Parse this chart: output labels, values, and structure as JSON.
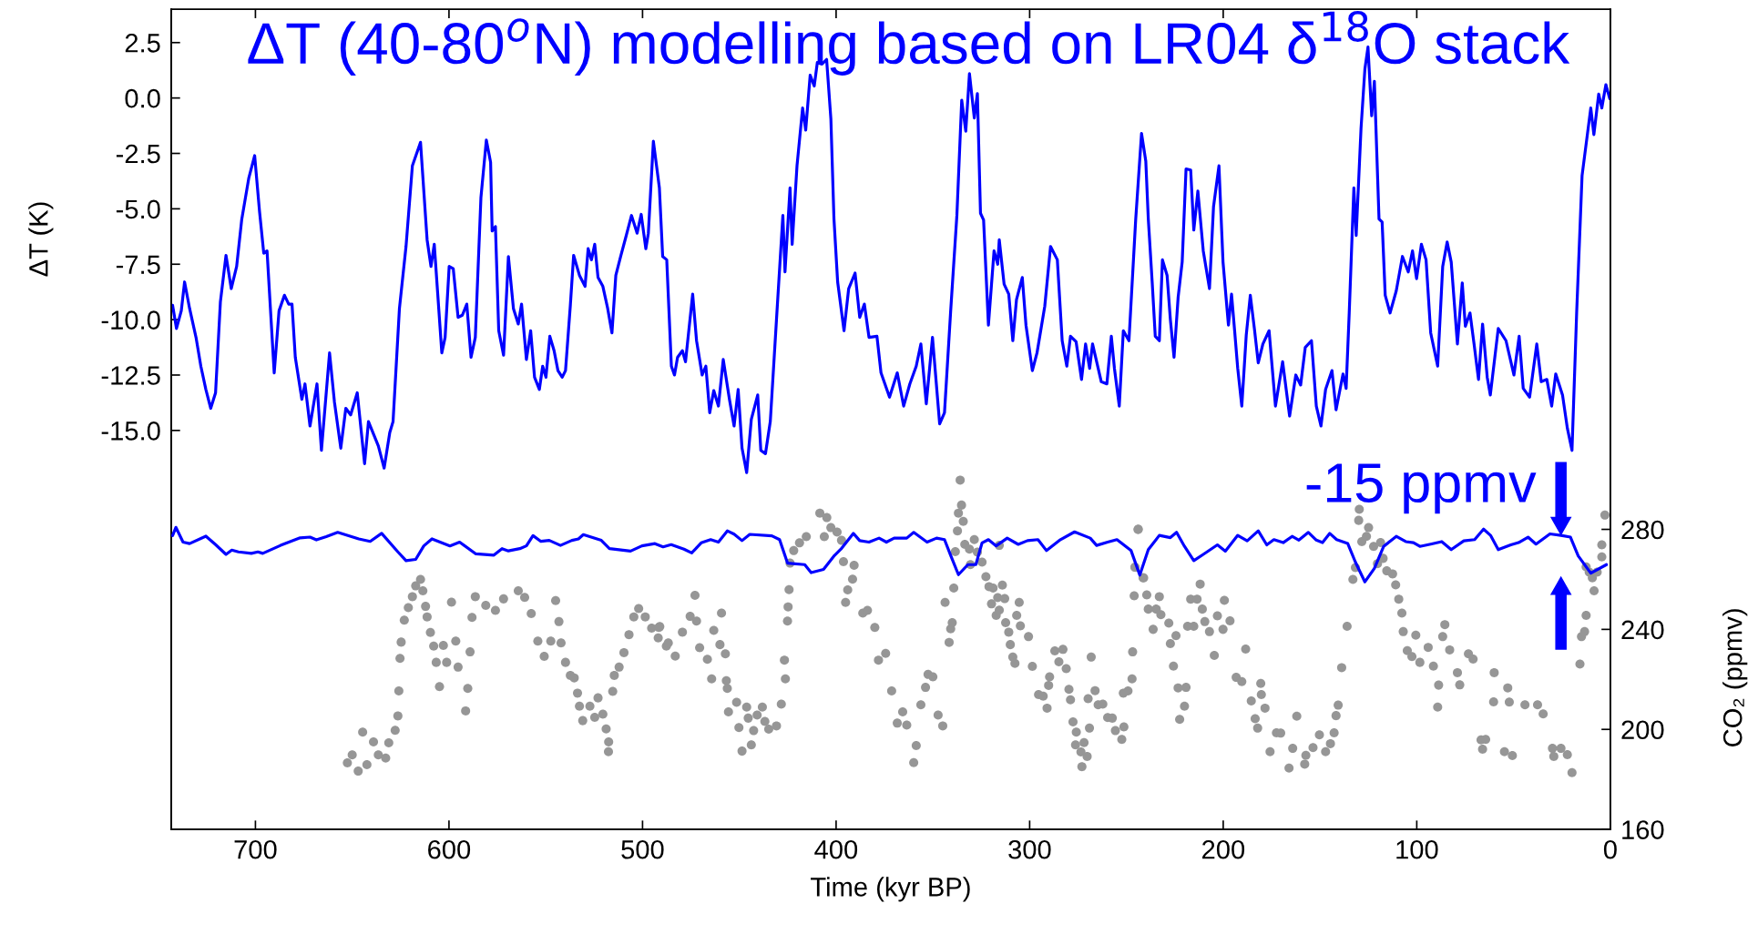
{
  "chart_data": {
    "type": "line",
    "title": "ΔT (40-80$^{o}$N) modelling based on LR04 δ$^{18}$O stack",
    "xlabel": "Time (kyr BP)",
    "ylabel": "ΔT (K)",
    "y2label": "CO₂ (ppmv)",
    "xlim": [
      743.5,
      0
    ],
    "xticks": [
      700,
      600,
      500,
      400,
      300,
      200,
      100,
      0
    ],
    "ylim": [
      -33,
      4
    ],
    "yticks": [
      {
        "value": 2.5,
        "label": "2.5"
      },
      {
        "value": 0,
        "label": "0.0"
      },
      {
        "value": -2.5,
        "label": "-2.5"
      },
      {
        "value": -5,
        "label": "-5.0"
      },
      {
        "value": -7.5,
        "label": "-7.5"
      },
      {
        "value": -10,
        "label": "-10.0"
      },
      {
        "value": -12.5,
        "label": "-12.5"
      },
      {
        "value": -15,
        "label": "-15.0"
      }
    ],
    "y2lim": [
      160,
      488
    ],
    "y2ticks": [
      160,
      200,
      240,
      280
    ],
    "annotations": [
      "-15 ppmv"
    ],
    "series": [
      {
        "color": "#0000ff",
        "x": [
          742.8,
          740.8,
          738.3,
          736.6,
          734.0,
          730.7,
          728.2,
          725.6,
          723.1,
          720.6,
          718.1,
          715.2,
          712.5,
          709.7,
          707.1,
          703.4,
          700.4,
          697.9,
          695.7,
          694.0,
          690.3,
          687.8,
          685.0,
          682.8,
          681.1,
          679.4,
          676.0,
          674.4,
          671.8,
          668.2,
          665.9,
          661.7,
          659.2,
          655.9,
          653.3,
          650.8,
          647.4,
          643.6,
          641.6,
          636.5,
          633.5,
          630.6,
          628.9,
          625.6,
          622.2,
          618.9,
          614.7,
          611.3,
          609.3,
          607.6,
          603.7,
          602.0,
          599.9,
          597.8,
          595.3,
          593.1,
          590.8,
          588.6,
          586.4,
          583.5,
          580.7,
          578.5,
          577.7,
          576.0,
          574.3,
          571.8,
          569.3,
          566.7,
          564.2,
          562.5,
          560.0,
          557.8,
          555.8,
          553.3,
          551.6,
          549.9,
          547.9,
          545.7,
          543.7,
          541.5,
          539.8,
          537.3,
          535.6,
          532.6,
          529.7,
          528.1,
          526.4,
          524.7,
          523.0,
          520.5,
          518.0,
          515.8,
          513.8,
          511.3,
          508.7,
          505.7,
          502.8,
          500.7,
          498.3,
          497.0,
          494.4,
          491.3,
          489.6,
          487.5,
          485.1,
          483.5,
          481.9,
          479.4,
          477.8,
          474.1,
          472.1,
          469.2,
          467.3,
          465.3,
          463.2,
          460.8,
          458.3,
          455.1,
          452.7,
          450.6,
          448.6,
          446.2,
          443.8,
          440.5,
          438.9,
          436.5,
          434.0,
          430.8,
          427.5,
          426.4,
          423.8,
          422.7,
          420.2,
          417.3,
          415.7,
          413.4,
          411.3,
          409.7,
          407.3,
          404.9,
          402.7,
          401.1,
          399.2,
          395.9,
          393.5,
          390.2,
          387.8,
          385.4,
          383.0,
          378.9,
          376.8,
          372.4,
          368.4,
          365.1,
          361.9,
          358.6,
          356.2,
          353.4,
          350.2,
          346.5,
          344.0,
          340.8,
          337.6,
          335.1,
          333.0,
          331.1,
          328.6,
          327.0,
          325.4,
          323.8,
          321.3,
          318.4,
          316.5,
          315.7,
          313.2,
          310.8,
          308.7,
          306.8,
          303.8,
          301.9,
          298.6,
          296.2,
          292.2,
          289.2,
          285.7,
          283.2,
          280.8,
          278.9,
          276.0,
          273.2,
          271.1,
          269.0,
          267.5,
          263.0,
          260.1,
          257.8,
          256.2,
          253.7,
          251.6,
          248.7,
          245.2,
          242.2,
          240.0,
          238.7,
          236.7,
          235.1,
          233.0,
          231.4,
          229.0,
          227.3,
          225.4,
          223.3,
          221.2,
          219.2,
          216.8,
          215.2,
          213.1,
          210.3,
          207.1,
          205.0,
          202.2,
          200.1,
          197.3,
          195.7,
          194.1,
          192.5,
          190.4,
          188.1,
          186.0,
          183.9,
          181.9,
          179.5,
          176.3,
          173.0,
          169.3,
          165.7,
          162.5,
          160.0,
          157.6,
          154.4,
          151.9,
          149.5,
          147.1,
          143.8,
          141.7,
          138.1,
          136.5,
          134.9,
          132.5,
          131.3,
          128.8,
          126.8,
          125.2,
          123.3,
          121.9,
          119.5,
          117.9,
          116.3,
          113.8,
          110.6,
          107.4,
          104.4,
          102.2,
          100.1,
          97.6,
          95.2,
          92.8,
          89.2,
          86.6,
          84.3,
          82.2,
          79.0,
          76.5,
          74.9,
          72.5,
          70.4,
          68.1,
          66.0,
          63.6,
          62.0,
          57.9,
          53.9,
          49.8,
          47.1,
          45.0,
          41.7,
          38.0,
          35.7,
          32.8,
          30.3,
          28.2,
          24.7,
          22.2,
          19.8,
          17.4,
          14.6,
          10.1,
          8.5,
          6.0,
          4.4,
          2.3,
          0.3
        ],
        "values": [
          -9.35,
          -10.4,
          -9.6,
          -8.3,
          -9.5,
          -10.8,
          -12.1,
          -13.15,
          -14.0,
          -13.3,
          -9.2,
          -7.1,
          -8.6,
          -7.6,
          -5.5,
          -3.6,
          -2.6,
          -5.1,
          -7.0,
          -6.9,
          -12.4,
          -9.6,
          -8.9,
          -9.3,
          -9.3,
          -11.7,
          -13.6,
          -12.9,
          -14.8,
          -12.9,
          -15.9,
          -11.5,
          -13.7,
          -15.8,
          -14.0,
          -14.3,
          -13.3,
          -16.5,
          -14.6,
          -15.7,
          -16.7,
          -15.1,
          -14.6,
          -9.5,
          -6.7,
          -3.05,
          -2.0,
          -6.4,
          -7.6,
          -6.6,
          -11.5,
          -10.8,
          -7.6,
          -7.7,
          -9.9,
          -9.8,
          -9.3,
          -11.7,
          -10.8,
          -4.5,
          -1.9,
          -2.9,
          -6.0,
          -5.8,
          -10.5,
          -11.6,
          -7.15,
          -9.5,
          -10.2,
          -9.3,
          -11.8,
          -10.5,
          -12.6,
          -13.15,
          -12.1,
          -12.6,
          -10.75,
          -11.4,
          -12.3,
          -12.6,
          -12.3,
          -9.35,
          -7.1,
          -8.0,
          -8.5,
          -6.8,
          -7.3,
          -6.6,
          -8.1,
          -8.5,
          -9.5,
          -10.6,
          -8.0,
          -7.15,
          -6.3,
          -5.3,
          -6.1,
          -5.25,
          -6.8,
          -6.1,
          -1.95,
          -4.05,
          -7.15,
          -7.3,
          -12.1,
          -12.5,
          -11.7,
          -11.4,
          -11.9,
          -8.85,
          -10.95,
          -12.5,
          -12.1,
          -14.2,
          -13.2,
          -13.9,
          -11.8,
          -13.6,
          -14.8,
          -13.15,
          -15.8,
          -16.9,
          -14.5,
          -13.4,
          -15.9,
          -16.05,
          -14.6,
          -10.0,
          -5.3,
          -7.85,
          -4.05,
          -6.6,
          -3.06,
          -0.45,
          -1.45,
          1.03,
          0.54,
          1.6,
          1.53,
          1.74,
          -0.94,
          -5.46,
          -8.3,
          -10.5,
          -8.6,
          -7.9,
          -9.9,
          -9.3,
          -10.8,
          -10.75,
          -12.4,
          -13.5,
          -12.4,
          -13.9,
          -12.9,
          -12.1,
          -11.1,
          -13.8,
          -10.8,
          -14.7,
          -14.2,
          -9.6,
          -5.3,
          -0.1,
          -1.5,
          1.1,
          -0.9,
          0.2,
          -5.2,
          -5.5,
          -10.25,
          -6.9,
          -7.5,
          -6.4,
          -8.4,
          -8.85,
          -10.95,
          -9.1,
          -8.1,
          -10.25,
          -12.3,
          -11.5,
          -9.4,
          -6.7,
          -7.3,
          -10.95,
          -12.1,
          -10.75,
          -11.0,
          -12.7,
          -11.1,
          -12.2,
          -11.1,
          -12.8,
          -12.9,
          -10.75,
          -12.2,
          -13.9,
          -10.5,
          -10.95,
          -5.46,
          -1.6,
          -2.85,
          -5.46,
          -8.3,
          -10.75,
          -10.95,
          -7.3,
          -8.0,
          -10.0,
          -11.7,
          -9.0,
          -7.4,
          -3.2,
          -3.25,
          -5.96,
          -4.2,
          -6.9,
          -8.6,
          -4.9,
          -3.06,
          -7.4,
          -10.25,
          -8.85,
          -10.5,
          -12.2,
          -13.9,
          -10.7,
          -8.9,
          -10.4,
          -11.95,
          -11.1,
          -10.5,
          -13.9,
          -11.9,
          -14.35,
          -12.5,
          -12.95,
          -11.25,
          -10.95,
          -13.9,
          -14.8,
          -13.15,
          -12.3,
          -14.07,
          -12.45,
          -13.1,
          -9.7,
          -4.05,
          -6.2,
          -1.37,
          1.31,
          2.3,
          -0.8,
          0.75,
          -5.46,
          -5.6,
          -8.9,
          -9.7,
          -8.7,
          -7.15,
          -7.85,
          -6.9,
          -8.15,
          -6.6,
          -7.3,
          -10.6,
          -12.1,
          -7.6,
          -6.5,
          -7.4,
          -11.1,
          -8.35,
          -10.3,
          -9.7,
          -11.1,
          -12.7,
          -10.2,
          -12.6,
          -13.4,
          -10.4,
          -10.95,
          -12.5,
          -10.75,
          -13.1,
          -13.5,
          -11.1,
          -12.8,
          -12.7,
          -13.9,
          -12.45,
          -13.4,
          -14.9,
          -15.9,
          -9.7,
          -3.5,
          -0.45,
          -1.65,
          0.18,
          -0.45,
          0.6,
          -0.03
        ]
      },
      {
        "axis": "y2",
        "color": "#0000ff",
        "x": [
          742.8,
          741.1,
          737.4,
          734.0,
          725.6,
          720.6,
          715.2,
          712.2,
          708.8,
          702.1,
          698.7,
          696.2,
          687.0,
          676.9,
          671.8,
          668.5,
          663.4,
          657.5,
          646.6,
          640.7,
          634.8,
          626.4,
          622.2,
          617.2,
          613.0,
          608.8,
          599.5,
          594.5,
          586.1,
          576.8,
          572.6,
          569.3,
          563.4,
          560.0,
          556.6,
          552.5,
          548.2,
          542.4,
          536.5,
          533.1,
          530.6,
          521.3,
          517.1,
          506.2,
          500.3,
          493.6,
          489.4,
          485.2,
          478.6,
          474.6,
          469.7,
          464.8,
          460.8,
          456.2,
          452.7,
          448.6,
          444.6,
          433.2,
          429.2,
          425.1,
          416.2,
          412.9,
          406.5,
          400.8,
          397.5,
          391.1,
          387.8,
          383.0,
          377.8,
          374.0,
          370.0,
          363.5,
          359.9,
          353.0,
          348.1,
          344.0,
          340.8,
          336.8,
          331.9,
          327.8,
          324.6,
          321.3,
          317.3,
          311.6,
          305.9,
          301.1,
          295.7,
          291.3,
          284.1,
          276.8,
          268.7,
          265.4,
          259.7,
          254.9,
          247.6,
          243.1,
          238.7,
          233.0,
          227.3,
          224.1,
          220.0,
          215.2,
          210.3,
          203.0,
          198.9,
          192.5,
          187.6,
          181.9,
          177.5,
          173.8,
          169.0,
          164.4,
          160.9,
          156.0,
          151.9,
          148.7,
          145.0,
          141.4,
          135.7,
          131.7,
          126.8,
          121.9,
          117.1,
          110.6,
          105.7,
          101.7,
          98.4,
          92.8,
          87.1,
          82.2,
          75.7,
          70.1,
          65.5,
          61.9,
          57.9,
          51.4,
          47.4,
          42.5,
          38.4,
          31.2,
          25.5,
          20.6,
          16.6,
          10.1,
          2.0
        ],
        "values": [
          277.5,
          280.8,
          274.9,
          274.3,
          277.3,
          273.9,
          270.0,
          271.7,
          271.0,
          270.4,
          271.0,
          270.4,
          273.6,
          276.6,
          276.9,
          275.8,
          277.1,
          278.8,
          276.2,
          275.2,
          278.4,
          271.0,
          267.5,
          268.0,
          273.4,
          276.2,
          273.4,
          274.9,
          270.2,
          269.7,
          272.3,
          271.4,
          272.3,
          273.4,
          277.5,
          275.2,
          275.6,
          273.6,
          275.6,
          276.2,
          277.9,
          275.6,
          272.3,
          271.3,
          273.4,
          274.3,
          273.0,
          273.9,
          272.1,
          270.6,
          274.6,
          275.9,
          274.9,
          279.4,
          278.1,
          275.5,
          278.0,
          277.4,
          275.9,
          266.5,
          265.9,
          262.7,
          264.0,
          269.6,
          272.1,
          278.4,
          275.5,
          274.9,
          276.5,
          274.9,
          276.5,
          276.5,
          278.8,
          274.9,
          276.5,
          275.9,
          269.6,
          261.9,
          265.9,
          265.9,
          274.6,
          275.9,
          273.4,
          276.5,
          274.0,
          275.5,
          275.9,
          271.5,
          275.9,
          279.0,
          276.5,
          273.6,
          274.9,
          275.9,
          271.5,
          261.7,
          271.9,
          277.6,
          276.7,
          278.8,
          273.2,
          267.5,
          270.0,
          273.8,
          271.3,
          277.6,
          275.4,
          279.4,
          273.8,
          275.9,
          274.7,
          277.2,
          275.7,
          278.8,
          275.7,
          274.7,
          278.4,
          275.9,
          274.4,
          266.9,
          259.0,
          264.4,
          273.2,
          277.2,
          275.1,
          274.7,
          273.2,
          274.1,
          275.1,
          271.9,
          275.4,
          275.9,
          280.1,
          277.6,
          271.9,
          273.8,
          274.7,
          276.9,
          274.1,
          278.2,
          277.6,
          276.9,
          269.4,
          262.5,
          265.9
        ]
      },
      {
        "type": "scatter",
        "axis": "y2",
        "color": "#969696",
        "marker": "circle",
        "x": [
          652.5,
          650.0,
          646.9,
          644.6,
          642.4,
          639.0,
          636.5,
          632.7,
          631.1,
          627.8,
          626.4,
          625.9,
          625.3,
          624.7,
          623.1,
          621.0,
          618.9,
          617.2,
          614.7,
          613.5,
          612.1,
          611.3,
          609.6,
          607.9,
          606.6,
          604.9,
          602.9,
          601.2,
          598.7,
          596.5,
          595.3,
          591.4,
          590.3,
          589.1,
          588.1,
          586.4,
          581.0,
          576.0,
          571.8,
          564.2,
          560.9,
          557.5,
          554.1,
          550.8,
          547.4,
          544.9,
          543.2,
          542.1,
          539.8,
          537.3,
          535.3,
          533.6,
          532.6,
          530.9,
          527.2,
          524.7,
          523.0,
          520.5,
          518.8,
          517.5,
          517.6,
          515.4,
          514.6,
          512.1,
          509.6,
          507.0,
          504.5,
          502.0,
          498.6,
          495.3,
          491.9,
          487.7,
          491.1,
          491.6,
          486.7,
          483.1,
          479.4,
          475.4,
          472.9,
          472.1,
          470.5,
          466.5,
          464.3,
          463.2,
          460.0,
          459.2,
          457.2,
          456.7,
          456.2,
          455.6,
          451.4,
          450.2,
          448.6,
          446.2,
          445.4,
          443.8,
          442.6,
          440.8,
          438.1,
          436.8,
          434.8,
          430.8,
          428.3,
          426.7,
          426.2,
          425.1,
          424.8,
          424.3,
          423.8,
          421.9,
          418.9,
          415.4,
          408.4,
          404.8,
          406.1,
          402.7,
          399.5,
          397.2,
          396.2,
          390.7,
          391.5,
          394.0,
          395.1,
          386.2,
          383.8,
          380.0,
          378.1,
          374.4,
          371.3,
          368.4,
          365.6,
          363.5,
          359.9,
          358.6,
          356.2,
          353.8,
          352.5,
          350.0,
          347.3,
          344.9,
          341.6,
          340.8,
          340.0,
          343.7,
          339.2,
          338.4,
          337.3,
          336.8,
          335.2,
          335.9,
          334.3,
          333.5,
          331.1,
          328.6,
          330.6,
          327.0,
          324.6,
          322.6,
          321.0,
          318.9,
          316.5,
          314.1,
          312.9,
          319.7,
          317.3,
          315.7,
          312.4,
          310.8,
          310.0,
          308.7,
          307.6,
          315.7,
          305.4,
          306.7,
          304.8,
          300.6,
          298.6,
          295.4,
          293.0,
          291.0,
          290.2,
          289.7,
          287.0,
          284.9,
          282.8,
          281.1,
          279.7,
          278.9,
          277.6,
          275.9,
          276.3,
          273.5,
          273.0,
          271.9,
          270.3,
          269.1,
          269.8,
          266.2,
          268.2,
          264.6,
          262.2,
          259.7,
          257.3,
          255.7,
          252.4,
          251.3,
          251.6,
          249.2,
          247.1,
          246.8,
          244.0,
          245.6,
          241.4,
          243.9,
          245.5,
          241.1,
          246.0,
          239.5,
          238.7,
          236.2,
          234.6,
          233.0,
          232.2,
          228.1,
          227.3,
          225.7,
          224.4,
          223.3,
          222.5,
          220.0,
          219.2,
          218.4,
          216.8,
          215.2,
          213.5,
          211.9,
          210.8,
          209.5,
          207.1,
          204.6,
          203.0,
          200.1,
          199.4,
          196.5,
          193.3,
          190.4,
          188.4,
          185.5,
          183.5,
          182.2,
          180.6,
          180.3,
          178.4,
          175.8,
          172.5,
          170.3,
          166.0,
          164.1,
          162.0,
          157.9,
          157.3,
          153.6,
          150.3,
          147.1,
          144.6,
          142.7,
          141.7,
          140.6,
          138.8,
          136.0,
          133.0,
          131.7,
          130.0,
          129.7,
          128.4,
          126.0,
          124.9,
          122.3,
          120.3,
          118.7,
          117.4,
          115.5,
          112.5,
          110.9,
          109.3,
          107.7,
          107.0,
          104.9,
          102.5,
          100.5,
          98.4,
          94.1,
          91.4,
          88.7,
          89.2,
          86.6,
          85.5,
          83.0,
          79.0,
          77.8,
          73.3,
          70.9,
          66.8,
          66.0,
          64.4,
          60.0,
          60.3,
          54.7,
          53.0,
          52.2,
          50.6,
          44.1,
          37.6,
          34.7,
          29.9,
          29.2,
          25.5,
          22.2,
          19.8,
          15.7,
          14.9,
          13.3,
          12.5,
          12.5,
          10.9,
          8.4,
          9.3,
          6.8,
          4.4,
          4.4,
          2.8
        ],
        "values": [
          186.6,
          189.8,
          183.3,
          198.9,
          185.9,
          195.0,
          189.8,
          188.5,
          194.6,
          199.6,
          205.4,
          215.4,
          228.4,
          234.9,
          243.7,
          248.7,
          253.1,
          257.4,
          260.0,
          255.4,
          249.2,
          245.0,
          238.8,
          233.3,
          226.8,
          217.1,
          233.6,
          226.8,
          250.9,
          235.3,
          224.9,
          207.4,
          216.4,
          231.0,
          244.8,
          253.1,
          249.6,
          247.6,
          252.2,
          255.4,
          252.8,
          246.3,
          235.3,
          229.2,
          235.3,
          251.5,
          243.1,
          234.6,
          226.8,
          221.6,
          220.6,
          214.5,
          209.3,
          203.5,
          209.3,
          204.8,
          212.6,
          206.1,
          200.2,
          195.0,
          191.1,
          215.2,
          221.6,
          224.9,
          230.7,
          237.9,
          245.0,
          248.3,
          245.0,
          240.5,
          236.6,
          233.3,
          241.1,
          240.8,
          234.6,
          229.3,
          238.9,
          245.2,
          253.6,
          243.3,
          232.7,
          228.0,
          220.2,
          239.6,
          233.9,
          246.5,
          230.2,
          219.5,
          216.4,
          207.0,
          210.8,
          200.7,
          191.3,
          208.9,
          204.5,
          193.8,
          199.5,
          205.7,
          208.9,
          203.2,
          200.1,
          201.4,
          210.1,
          227.7,
          220.2,
          243.3,
          249.0,
          255.9,
          266.5,
          271.5,
          274.6,
          277.1,
          286.5,
          284.7,
          277.1,
          280.7,
          278.9,
          275.6,
          267.1,
          265.6,
          260.1,
          255.8,
          250.8,
          246.5,
          247.6,
          240.8,
          227.7,
          230.4,
          215.4,
          202.5,
          207.0,
          201.7,
          186.7,
          193.5,
          209.8,
          216.8,
          222.0,
          221.0,
          205.7,
          201.4,
          234.8,
          240.2,
          242.7,
          250.8,
          256.5,
          271.1,
          279.4,
          286.5,
          289.7,
          299.7,
          283.2,
          274.0,
          272.1,
          275.9,
          265.9,
          270.9,
          266.9,
          261.1,
          257.1,
          256.5,
          252.7,
          257.7,
          252.3,
          250.2,
          245.6,
          247.7,
          242.7,
          238.9,
          233.9,
          228.9,
          226.4,
          273.6,
          250.8,
          245.6,
          241.4,
          237.1,
          225.2,
          213.9,
          213.3,
          208.5,
          217.6,
          221.0,
          231.4,
          227.0,
          232.0,
          224.3,
          216.0,
          211.8,
          203.0,
          198.9,
          193.8,
          191.0,
          185.1,
          194.7,
          189.2,
          200.5,
          212.3,
          215.5,
          228.9,
          209.8,
          210.1,
          204.7,
          204.5,
          199.5,
          196.0,
          201.0,
          214.5,
          215.4,
          220.2,
          231.0,
          279.9,
          264.9,
          260.6,
          280.1,
          264.8,
          260.6,
          253.4,
          253.8,
          248.1,
          240.0,
          248.1,
          253.1,
          245.9,
          242.5,
          234.3,
          225.3,
          237.5,
          216.6,
          204.0,
          209.3,
          216.8,
          241.2,
          252.1,
          241.2,
          252.1,
          258.1,
          248.1,
          243.1,
          239.1,
          229.6,
          245.4,
          240.0,
          251.6,
          243.4,
          220.8,
          219.1,
          232.1,
          211.4,
          204.3,
          200.5,
          218.4,
          213.9,
          208.5,
          191.1,
          198.6,
          198.5,
          184.5,
          192.4,
          205.3,
          186.1,
          189.6,
          192.7,
          197.8,
          191.1,
          194.3,
          198.6,
          205.5,
          209.7,
          224.7,
          241.2,
          260.0,
          264.7,
          283.6,
          288.0,
          275.1,
          277.2,
          280.7,
          273.2,
          266.3,
          274.7,
          268.4,
          263.4,
          262.2,
          257.8,
          252.1,
          246.5,
          239.1,
          231.5,
          229.1,
          237.7,
          226.8,
          232.8,
          225.3,
          217.7,
          208.9,
          237.1,
          241.9,
          231.8,
          222.7,
          217.8,
          230.2,
          228.1,
          195.8,
          192.1,
          196.0,
          222.7,
          211.0,
          191.1,
          216.6,
          210.9,
          189.5,
          209.8,
          209.8,
          206.2,
          192.4,
          189.2,
          192.4,
          189.9,
          182.7,
          226.1,
          237.1,
          239.1,
          245.6,
          265.0,
          262.9,
          255.4,
          260.6,
          262.9,
          269.0,
          273.8,
          285.7
        ]
      }
    ]
  }
}
